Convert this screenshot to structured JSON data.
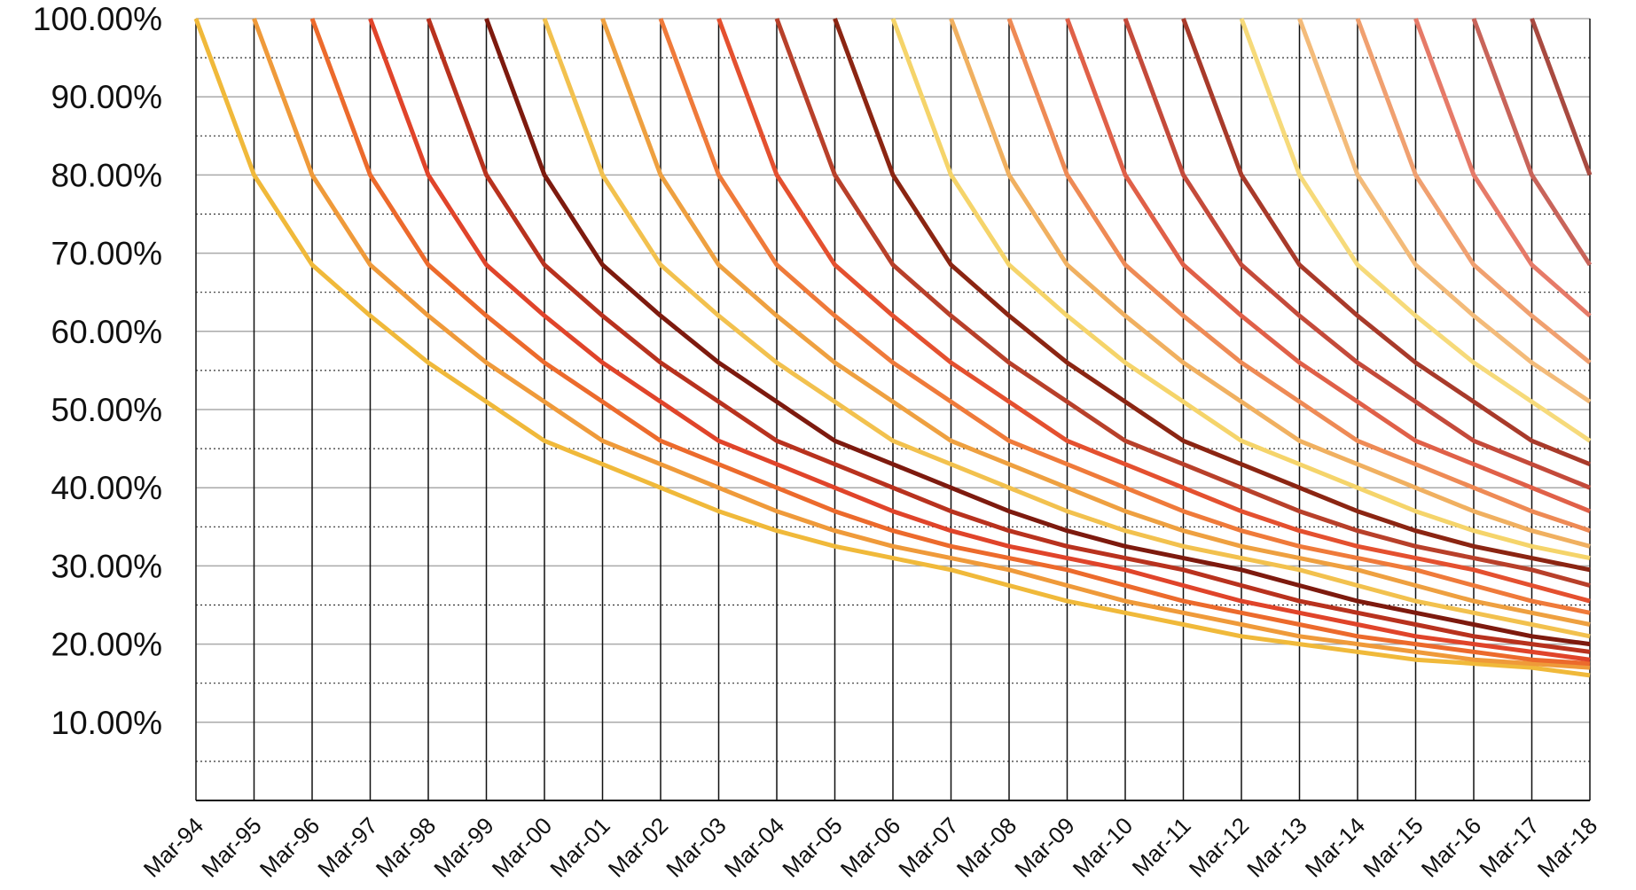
{
  "chart_data": {
    "type": "line",
    "categories": [
      "Mar-94",
      "Mar-95",
      "Mar-96",
      "Mar-97",
      "Mar-98",
      "Mar-99",
      "Mar-00",
      "Mar-01",
      "Mar-02",
      "Mar-03",
      "Mar-04",
      "Mar-05",
      "Mar-06",
      "Mar-07",
      "Mar-08",
      "Mar-09",
      "Mar-10",
      "Mar-11",
      "Mar-12",
      "Mar-13",
      "Mar-14",
      "Mar-15",
      "Mar-16",
      "Mar-17",
      "Mar-18"
    ],
    "ylim": [
      0,
      100
    ],
    "yticks": [
      0,
      {
        "value": 10,
        "label": "10.00%"
      },
      {
        "value": 20,
        "label": "20.00%"
      },
      {
        "value": 30,
        "label": "30.00%"
      },
      {
        "value": 40,
        "label": "40.00%"
      },
      {
        "value": 50,
        "label": "50.00%"
      },
      {
        "value": 60,
        "label": "60.00%"
      },
      {
        "value": 70,
        "label": "70.00%"
      },
      {
        "value": 80,
        "label": "80.00%"
      },
      {
        "value": 90,
        "label": "90.00%"
      },
      {
        "value": 100,
        "label": "100.00%"
      }
    ],
    "grid": true,
    "series": [
      {
        "color": "#f0b93a",
        "values": [
          100,
          80,
          68.5,
          62,
          56,
          51,
          46,
          43,
          40,
          37,
          34.5,
          32.5,
          31,
          29.5,
          27.5,
          25.5,
          24,
          22.5,
          21,
          20,
          19,
          18,
          17.5,
          17,
          16
        ]
      },
      {
        "color": "#ef9a3a",
        "values": [
          null,
          100,
          80,
          68.5,
          62,
          56,
          51,
          46,
          43,
          40,
          37,
          34.5,
          32.5,
          31,
          29.5,
          27.5,
          25.5,
          24,
          22.5,
          21,
          20,
          19,
          18,
          17.5,
          17
        ]
      },
      {
        "color": "#ec6a2c",
        "values": [
          null,
          null,
          100,
          80,
          68.5,
          62,
          56,
          51,
          46,
          43,
          40,
          37,
          34.5,
          32.5,
          31,
          29.5,
          27.5,
          25.5,
          24,
          22.5,
          21,
          20,
          19,
          18,
          17.5
        ]
      },
      {
        "color": "#e0442a",
        "values": [
          null,
          null,
          null,
          100,
          80,
          68.5,
          62,
          56,
          51,
          46,
          43,
          40,
          37,
          34.5,
          32.5,
          31,
          29.5,
          27.5,
          25.5,
          24,
          22.5,
          21,
          20,
          19,
          18
        ]
      },
      {
        "color": "#b8321e",
        "values": [
          null,
          null,
          null,
          null,
          100,
          80,
          68.5,
          62,
          56,
          51,
          46,
          43,
          40,
          37,
          34.5,
          32.5,
          31,
          29.5,
          27.5,
          25.5,
          24,
          22.5,
          21,
          20,
          19
        ]
      },
      {
        "color": "#7d1a0e",
        "values": [
          null,
          null,
          null,
          null,
          null,
          100,
          80,
          68.5,
          62,
          56,
          51,
          46,
          43,
          40,
          37,
          34.5,
          32.5,
          31,
          29.5,
          27.5,
          25.5,
          24,
          22.5,
          21,
          20
        ]
      },
      {
        "color": "#f2c14e",
        "values": [
          null,
          null,
          null,
          null,
          null,
          null,
          100,
          80,
          68.5,
          62,
          56,
          51,
          46,
          43,
          40,
          37,
          34.5,
          32.5,
          31,
          29.5,
          27.5,
          25.5,
          24,
          22.5,
          21
        ]
      },
      {
        "color": "#eea040",
        "values": [
          null,
          null,
          null,
          null,
          null,
          null,
          null,
          100,
          80,
          68.5,
          62,
          56,
          51,
          46,
          43,
          40,
          37,
          34.5,
          32.5,
          31,
          29.5,
          27.5,
          25.5,
          24,
          22.5
        ]
      },
      {
        "color": "#ef7a3a",
        "values": [
          null,
          null,
          null,
          null,
          null,
          null,
          null,
          null,
          100,
          80,
          68.5,
          62,
          56,
          51,
          46,
          43,
          40,
          37,
          34.5,
          32.5,
          31,
          29.5,
          27.5,
          25.5,
          24
        ]
      },
      {
        "color": "#e4502f",
        "values": [
          null,
          null,
          null,
          null,
          null,
          null,
          null,
          null,
          null,
          100,
          80,
          68.5,
          62,
          56,
          51,
          46,
          43,
          40,
          37,
          34.5,
          32.5,
          31,
          29.5,
          27.5,
          25.5
        ]
      },
      {
        "color": "#b8402a",
        "values": [
          null,
          null,
          null,
          null,
          null,
          null,
          null,
          null,
          null,
          null,
          100,
          80,
          68.5,
          62,
          56,
          51,
          46,
          43,
          40,
          37,
          34.5,
          32.5,
          31,
          29.5,
          27.5
        ]
      },
      {
        "color": "#8b2512",
        "values": [
          null,
          null,
          null,
          null,
          null,
          null,
          null,
          null,
          null,
          null,
          null,
          100,
          80,
          68.5,
          62,
          56,
          51,
          46,
          43,
          40,
          37,
          34.5,
          32.5,
          31,
          29.5
        ]
      },
      {
        "color": "#f5d46a",
        "values": [
          null,
          null,
          null,
          null,
          null,
          null,
          null,
          null,
          null,
          null,
          null,
          null,
          100,
          80,
          68.5,
          62,
          56,
          51,
          46,
          43,
          40,
          37,
          34.5,
          32.5,
          31
        ]
      },
      {
        "color": "#f0b060",
        "values": [
          null,
          null,
          null,
          null,
          null,
          null,
          null,
          null,
          null,
          null,
          null,
          null,
          null,
          100,
          80,
          68.5,
          62,
          56,
          51,
          46,
          43,
          40,
          37,
          34.5,
          32.5
        ]
      },
      {
        "color": "#ee8a55",
        "values": [
          null,
          null,
          null,
          null,
          null,
          null,
          null,
          null,
          null,
          null,
          null,
          null,
          null,
          null,
          100,
          80,
          68.5,
          62,
          56,
          51,
          46,
          43,
          40,
          37,
          34.5
        ]
      },
      {
        "color": "#e06048",
        "values": [
          null,
          null,
          null,
          null,
          null,
          null,
          null,
          null,
          null,
          null,
          null,
          null,
          null,
          null,
          null,
          100,
          80,
          68.5,
          62,
          56,
          51,
          46,
          43,
          40,
          37
        ]
      },
      {
        "color": "#c44a3a",
        "values": [
          null,
          null,
          null,
          null,
          null,
          null,
          null,
          null,
          null,
          null,
          null,
          null,
          null,
          null,
          null,
          null,
          100,
          80,
          68.5,
          62,
          56,
          51,
          46,
          43,
          40
        ]
      },
      {
        "color": "#a83a2a",
        "values": [
          null,
          null,
          null,
          null,
          null,
          null,
          null,
          null,
          null,
          null,
          null,
          null,
          null,
          null,
          null,
          null,
          null,
          100,
          80,
          68.5,
          62,
          56,
          51,
          46,
          43
        ]
      },
      {
        "color": "#f6da7a",
        "values": [
          null,
          null,
          null,
          null,
          null,
          null,
          null,
          null,
          null,
          null,
          null,
          null,
          null,
          null,
          null,
          null,
          null,
          null,
          100,
          80,
          68.5,
          62,
          56,
          51,
          46
        ]
      },
      {
        "color": "#f3bb7a",
        "values": [
          null,
          null,
          null,
          null,
          null,
          null,
          null,
          null,
          null,
          null,
          null,
          null,
          null,
          null,
          null,
          null,
          null,
          null,
          null,
          100,
          80,
          68.5,
          62,
          56,
          51
        ]
      },
      {
        "color": "#f0a070",
        "values": [
          null,
          null,
          null,
          null,
          null,
          null,
          null,
          null,
          null,
          null,
          null,
          null,
          null,
          null,
          null,
          null,
          null,
          null,
          null,
          null,
          100,
          80,
          68.5,
          62,
          56
        ]
      },
      {
        "color": "#e67a68",
        "values": [
          null,
          null,
          null,
          null,
          null,
          null,
          null,
          null,
          null,
          null,
          null,
          null,
          null,
          null,
          null,
          null,
          null,
          null,
          null,
          null,
          null,
          100,
          80,
          68.5,
          62
        ]
      },
      {
        "color": "#c8645a",
        "values": [
          null,
          null,
          null,
          null,
          null,
          null,
          null,
          null,
          null,
          null,
          null,
          null,
          null,
          null,
          null,
          null,
          null,
          null,
          null,
          null,
          null,
          null,
          100,
          80,
          68.5
        ]
      },
      {
        "color": "#a84a40",
        "values": [
          null,
          null,
          null,
          null,
          null,
          null,
          null,
          null,
          null,
          null,
          null,
          null,
          null,
          null,
          null,
          null,
          null,
          null,
          null,
          null,
          null,
          null,
          null,
          100,
          80
        ]
      }
    ]
  }
}
